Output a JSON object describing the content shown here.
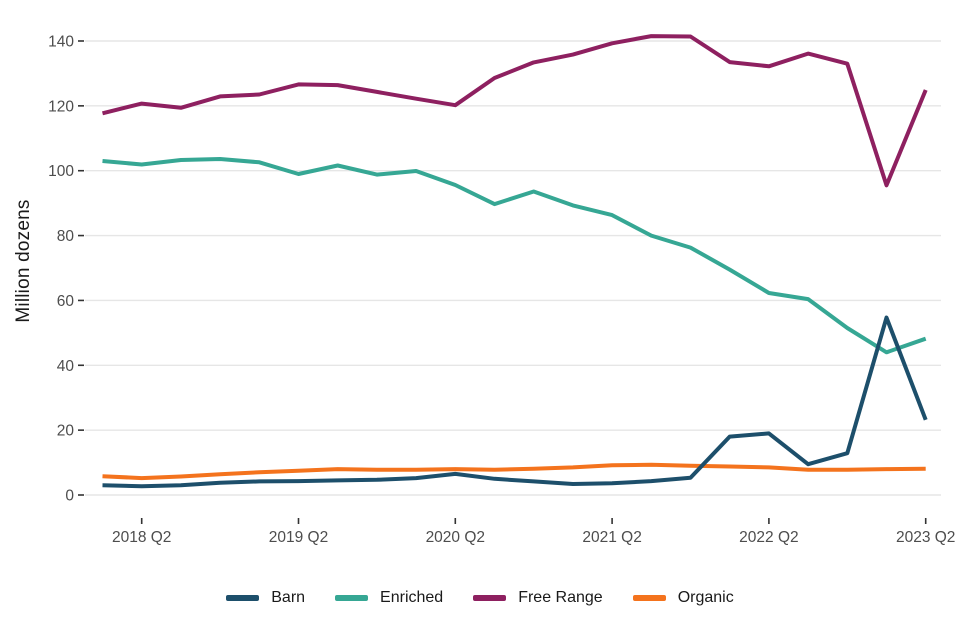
{
  "chart": {
    "y_axis_title": "Million dozens",
    "background_color": "#ffffff",
    "gridline_color": "#e6e6e6",
    "tick_color": "#333333",
    "tick_label_color": "#4d4d4d",
    "legend_text_color": "#1a1a1a"
  },
  "chart_data": {
    "type": "line",
    "title": "",
    "xlabel": "",
    "ylabel": "Million dozens",
    "grid": "horizontal",
    "legend_position": "bottom",
    "x": [
      "2018 Q1",
      "2018 Q2",
      "2018 Q3",
      "2018 Q4",
      "2019 Q1",
      "2019 Q2",
      "2019 Q3",
      "2019 Q4",
      "2020 Q1",
      "2020 Q2",
      "2020 Q3",
      "2020 Q4",
      "2021 Q1",
      "2021 Q2",
      "2021 Q3",
      "2021 Q4",
      "2022 Q1",
      "2022 Q2",
      "2022 Q3",
      "2022 Q4",
      "2023 Q1",
      "2023 Q2"
    ],
    "x_tick_labels": [
      "2018 Q2",
      "2019 Q2",
      "2020 Q2",
      "2021 Q2",
      "2022 Q2",
      "2023 Q2"
    ],
    "x_tick_indices": [
      1,
      5,
      9,
      13,
      17,
      21
    ],
    "yticks": [
      0,
      20,
      40,
      60,
      80,
      100,
      120,
      140
    ],
    "ylim": [
      0,
      141.5
    ],
    "series": [
      {
        "name": "Barn",
        "color": "#1d4f6b",
        "values": [
          3.0,
          2.7,
          3.0,
          3.8,
          4.2,
          4.3,
          4.5,
          4.7,
          5.2,
          6.5,
          5.0,
          4.2,
          3.4,
          3.6,
          4.3,
          5.3,
          18.0,
          19.0,
          9.5,
          12.9,
          54.7,
          23.2
        ]
      },
      {
        "name": "Enriched",
        "color": "#36a794",
        "values": [
          103.0,
          101.9,
          103.3,
          103.6,
          102.6,
          99.0,
          101.6,
          98.8,
          99.9,
          95.6,
          89.7,
          93.6,
          89.3,
          86.3,
          80.0,
          76.3,
          69.5,
          62.3,
          60.4,
          51.5,
          44.0,
          48.2
        ]
      },
      {
        "name": "Free Range",
        "color": "#8e2060",
        "values": [
          117.7,
          120.7,
          119.4,
          122.9,
          123.5,
          126.6,
          126.4,
          124.3,
          122.2,
          120.2,
          128.6,
          133.4,
          135.8,
          139.3,
          141.5,
          141.4,
          133.5,
          132.2,
          136.1,
          133.0,
          95.5,
          124.9
        ]
      },
      {
        "name": "Organic",
        "color": "#f4731d",
        "values": [
          5.8,
          5.2,
          5.7,
          6.4,
          7.0,
          7.5,
          8.0,
          7.8,
          7.8,
          8.0,
          7.8,
          8.1,
          8.5,
          9.2,
          9.3,
          9.0,
          8.8,
          8.5,
          7.8,
          7.8,
          8.0,
          8.1
        ]
      }
    ]
  }
}
